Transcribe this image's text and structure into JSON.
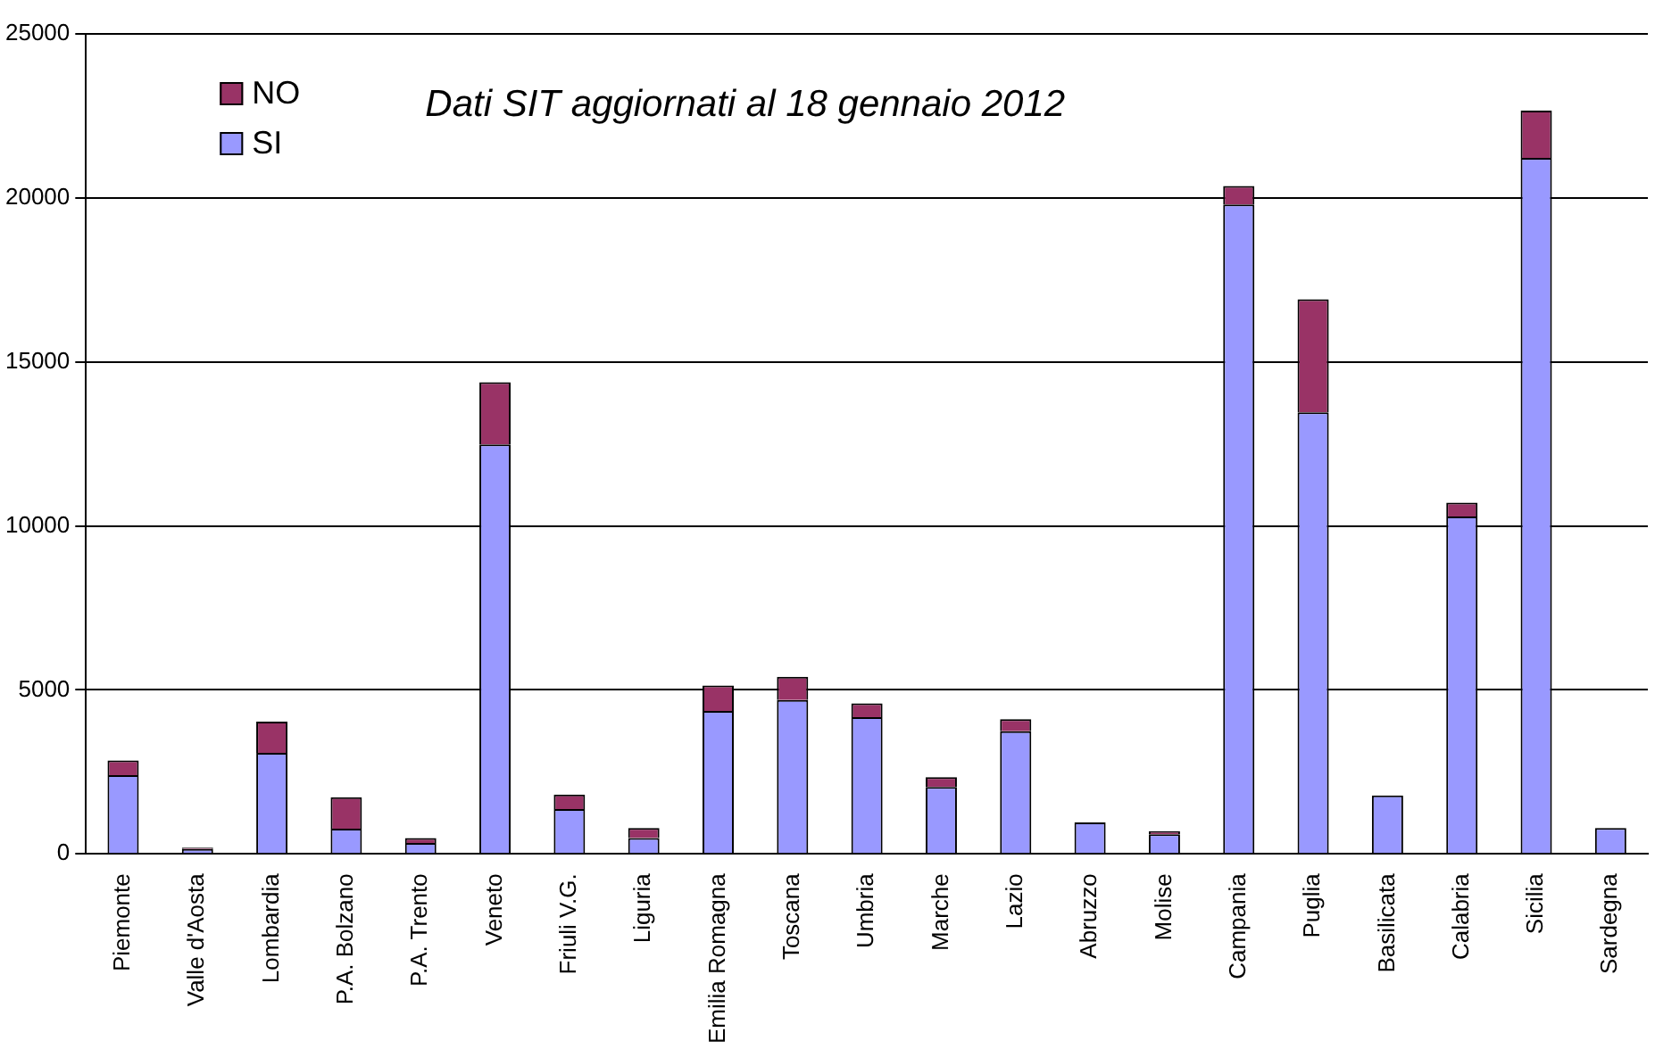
{
  "chart_data": {
    "type": "bar",
    "title": "Dati SIT aggiornati al 18 gennaio 2012",
    "categories": [
      "Piemonte",
      "Valle d'Aosta",
      "Lombardia",
      "P.A. Bolzano",
      "P.A. Trento",
      "Veneto",
      "Friuli V.G.",
      "Liguria",
      "Emilia Romagna",
      "Toscana",
      "Umbria",
      "Marche",
      "Lazio",
      "Abruzzo",
      "Molise",
      "Campania",
      "Puglia",
      "Basilicata",
      "Calabria",
      "Sicilia",
      "Sardegna"
    ],
    "series": [
      {
        "name": "SI",
        "color": "#9999ff",
        "values": [
          2400,
          150,
          3080,
          770,
          330,
          12480,
          1370,
          480,
          4360,
          4690,
          4170,
          2040,
          3740,
          960,
          600,
          19800,
          13460,
          1780,
          10290,
          21220,
          790
        ]
      },
      {
        "name": "NO",
        "color": "#993366",
        "values": [
          450,
          40,
          950,
          960,
          150,
          1900,
          440,
          310,
          770,
          710,
          420,
          300,
          370,
          null,
          90,
          560,
          3450,
          null,
          420,
          1440,
          0
        ]
      }
    ],
    "stacked": true,
    "ylim": [
      0,
      25000
    ],
    "yticks": [
      0,
      5000,
      10000,
      15000,
      20000,
      25000
    ],
    "grid": "y",
    "legend": "top left"
  }
}
